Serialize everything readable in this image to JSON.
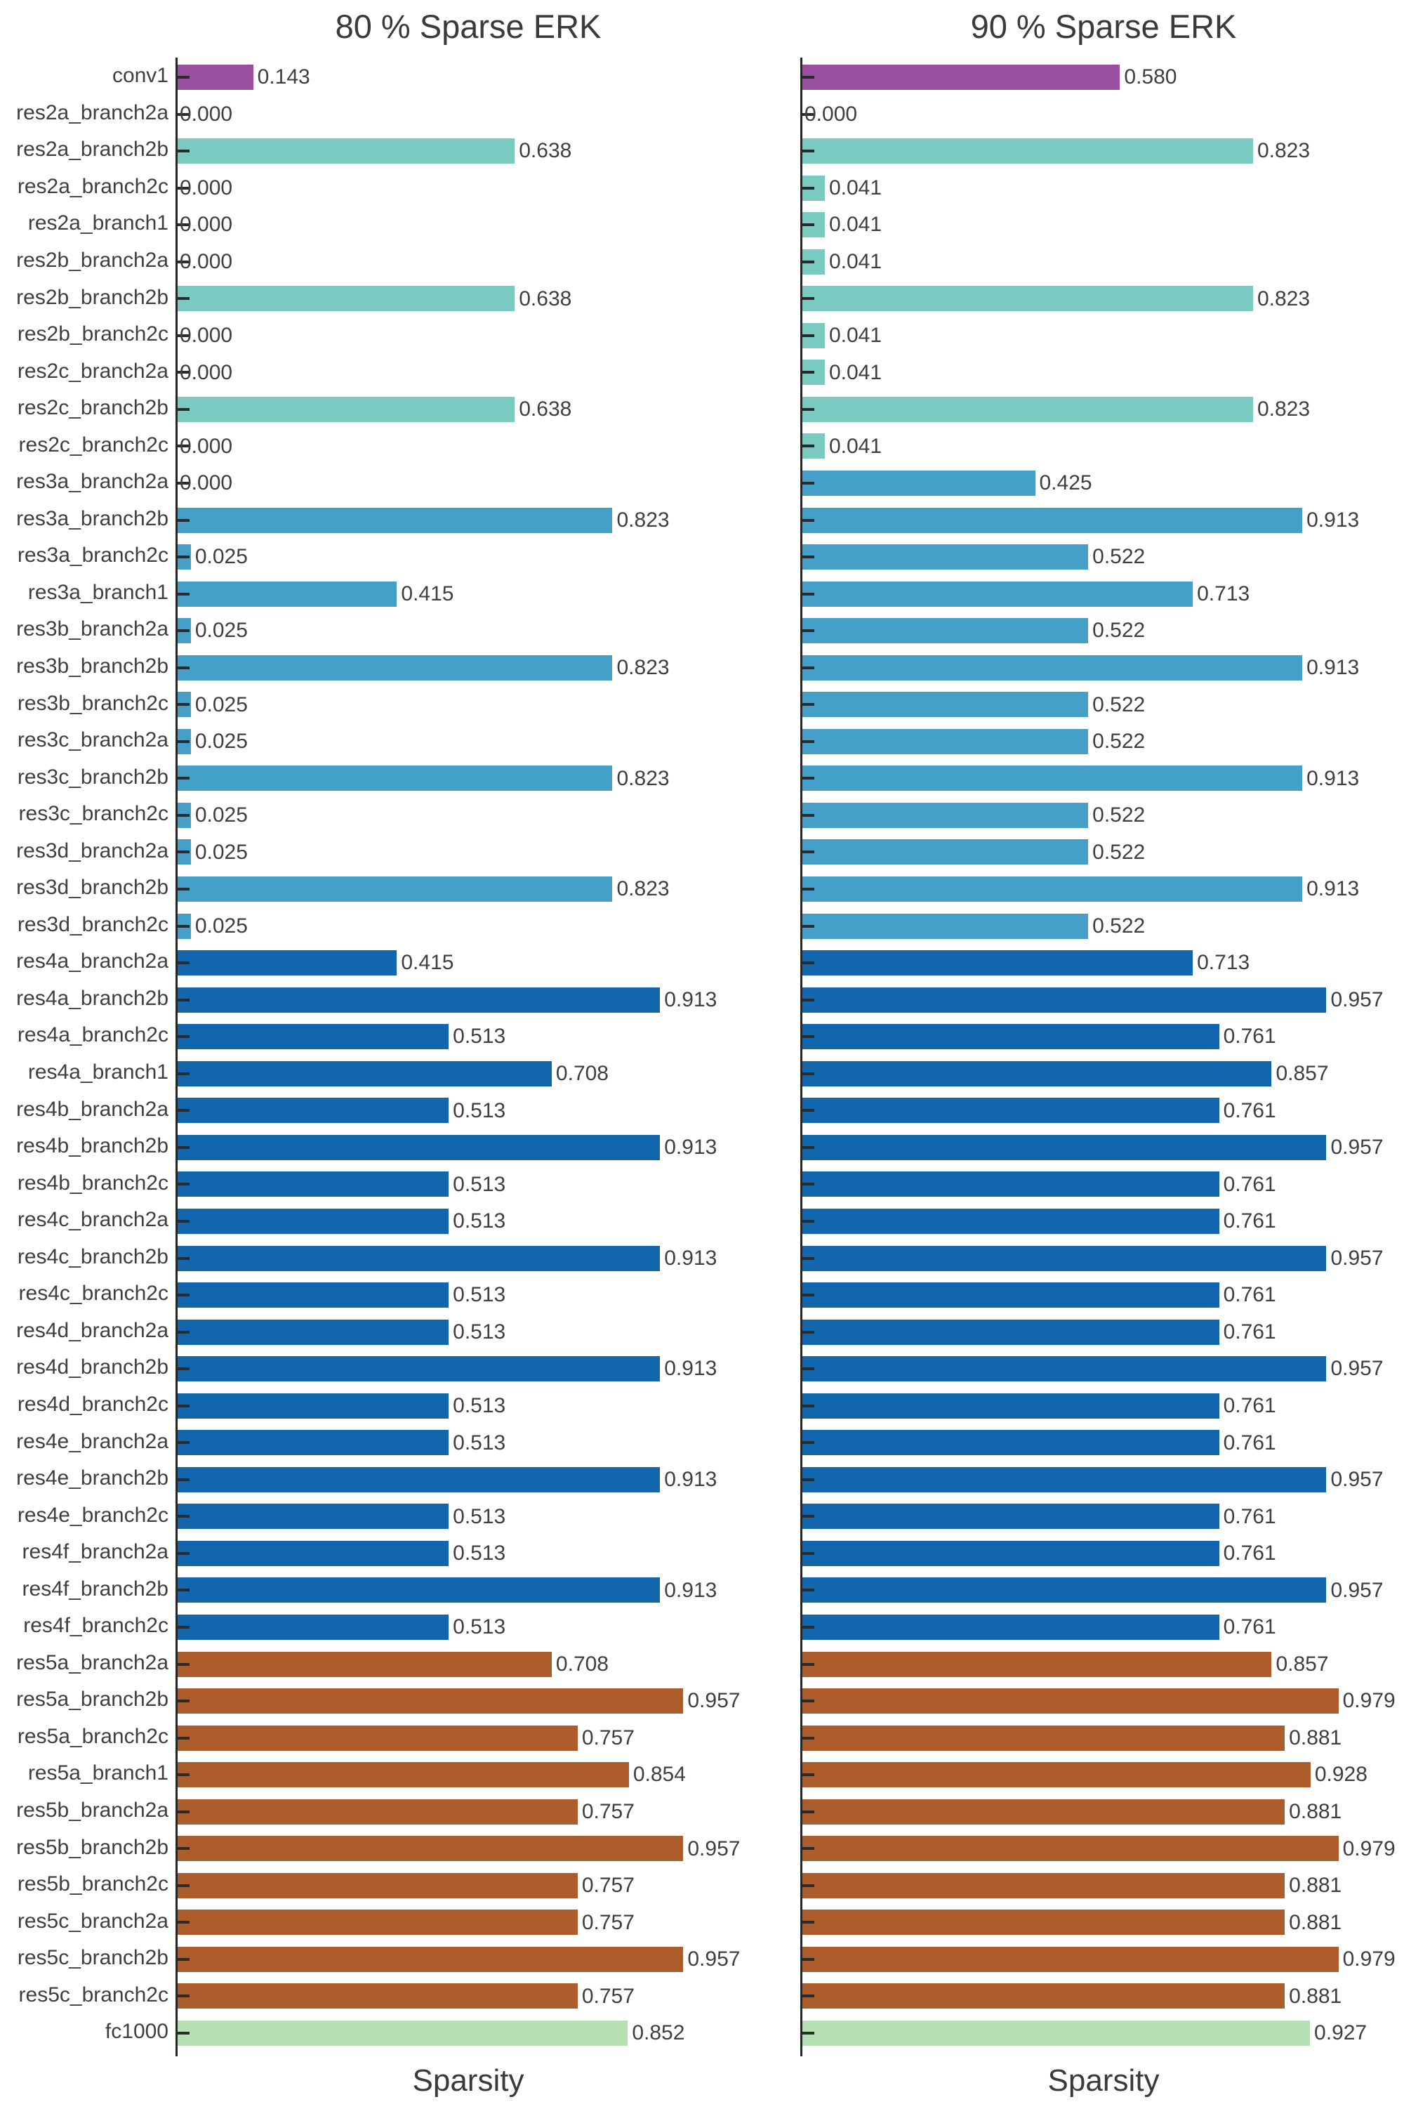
{
  "page": {
    "background": "#ffffff"
  },
  "chart_data": {
    "type": "bar",
    "orientation": "horizontal",
    "xlabel": "Sparsity",
    "grid": false,
    "xlim": [
      0,
      1.1
    ],
    "value_format": "3 decimals",
    "categories": [
      "conv1",
      "res2a_branch2a",
      "res2a_branch2b",
      "res2a_branch2c",
      "res2a_branch1",
      "res2b_branch2a",
      "res2b_branch2b",
      "res2b_branch2c",
      "res2c_branch2a",
      "res2c_branch2b",
      "res2c_branch2c",
      "res3a_branch2a",
      "res3a_branch2b",
      "res3a_branch2c",
      "res3a_branch1",
      "res3b_branch2a",
      "res3b_branch2b",
      "res3b_branch2c",
      "res3c_branch2a",
      "res3c_branch2b",
      "res3c_branch2c",
      "res3d_branch2a",
      "res3d_branch2b",
      "res3d_branch2c",
      "res4a_branch2a",
      "res4a_branch2b",
      "res4a_branch2c",
      "res4a_branch1",
      "res4b_branch2a",
      "res4b_branch2b",
      "res4b_branch2c",
      "res4c_branch2a",
      "res4c_branch2b",
      "res4c_branch2c",
      "res4d_branch2a",
      "res4d_branch2b",
      "res4d_branch2c",
      "res4e_branch2a",
      "res4e_branch2b",
      "res4e_branch2c",
      "res4f_branch2a",
      "res4f_branch2b",
      "res4f_branch2c",
      "res5a_branch2a",
      "res5a_branch2b",
      "res5a_branch2c",
      "res5a_branch1",
      "res5b_branch2a",
      "res5b_branch2b",
      "res5b_branch2c",
      "res5c_branch2a",
      "res5c_branch2b",
      "res5c_branch2c",
      "fc1000"
    ],
    "groups": [
      "conv1",
      "res2",
      "res2",
      "res2",
      "res2",
      "res2",
      "res2",
      "res2",
      "res2",
      "res2",
      "res2",
      "res3",
      "res3",
      "res3",
      "res3",
      "res3",
      "res3",
      "res3",
      "res3",
      "res3",
      "res3",
      "res3",
      "res3",
      "res3",
      "res4",
      "res4",
      "res4",
      "res4",
      "res4",
      "res4",
      "res4",
      "res4",
      "res4",
      "res4",
      "res4",
      "res4",
      "res4",
      "res4",
      "res4",
      "res4",
      "res4",
      "res4",
      "res4",
      "res5",
      "res5",
      "res5",
      "res5",
      "res5",
      "res5",
      "res5",
      "res5",
      "res5",
      "res5",
      "fc1000"
    ],
    "colors": {
      "conv1": "#9a4fa0",
      "res2": "#79cbc2",
      "res3": "#45a0c9",
      "res4": "#1266ad",
      "res5": "#ad5c2c",
      "fc1000": "#b5e0b2"
    },
    "axis_color": "#262626",
    "text_color": "#3d3d3d",
    "series": [
      {
        "name": "80 % Sparse ERK",
        "values": [
          0.143,
          0.0,
          0.638,
          0.0,
          0.0,
          0.0,
          0.638,
          0.0,
          0.0,
          0.638,
          0.0,
          0.0,
          0.823,
          0.025,
          0.415,
          0.025,
          0.823,
          0.025,
          0.025,
          0.823,
          0.025,
          0.025,
          0.823,
          0.025,
          0.415,
          0.913,
          0.513,
          0.708,
          0.513,
          0.913,
          0.513,
          0.513,
          0.913,
          0.513,
          0.513,
          0.913,
          0.513,
          0.513,
          0.913,
          0.513,
          0.513,
          0.913,
          0.513,
          0.708,
          0.957,
          0.757,
          0.854,
          0.757,
          0.957,
          0.757,
          0.757,
          0.957,
          0.757,
          0.852
        ]
      },
      {
        "name": "90 % Sparse ERK",
        "values": [
          0.58,
          0.0,
          0.823,
          0.041,
          0.041,
          0.041,
          0.823,
          0.041,
          0.041,
          0.823,
          0.041,
          0.425,
          0.913,
          0.522,
          0.713,
          0.522,
          0.913,
          0.522,
          0.522,
          0.913,
          0.522,
          0.522,
          0.913,
          0.522,
          0.713,
          0.957,
          0.761,
          0.857,
          0.761,
          0.957,
          0.761,
          0.761,
          0.957,
          0.761,
          0.761,
          0.957,
          0.761,
          0.761,
          0.957,
          0.761,
          0.761,
          0.957,
          0.761,
          0.857,
          0.979,
          0.881,
          0.928,
          0.881,
          0.979,
          0.881,
          0.881,
          0.979,
          0.881,
          0.927
        ]
      }
    ]
  }
}
